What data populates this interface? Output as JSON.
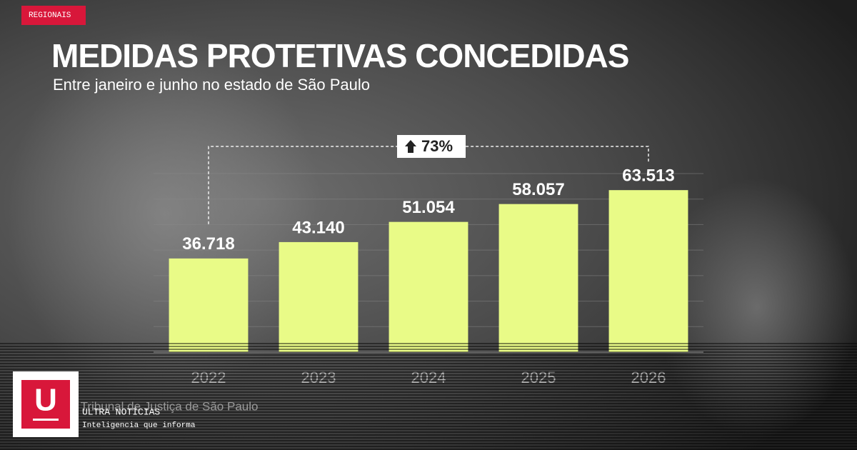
{
  "badge": "REGIONAIS",
  "chart_data": {
    "type": "bar",
    "title": "MEDIDAS PROTETIVAS CONCEDIDAS",
    "subtitle": "Entre janeiro e junho no estado de São Paulo",
    "categories": [
      "2022",
      "2023",
      "2024",
      "2025",
      "2026"
    ],
    "values": [
      36718,
      43140,
      51054,
      58057,
      63513
    ],
    "value_labels": [
      "36.718",
      "43.140",
      "51.054",
      "58.057",
      "63.513"
    ],
    "color": "#e9fb87",
    "ylim": [
      0,
      70000
    ],
    "yticks": [
      0,
      10000,
      20000,
      30000,
      40000,
      50000,
      60000,
      70000
    ],
    "grid": true,
    "annotation": "73%",
    "source": "Fonte: Tribunal de Justiça de São Paulo"
  },
  "brand": {
    "logo": "U",
    "name": "ULTRA NOTÍCIAS",
    "tagline": "Inteligencia que informa"
  }
}
